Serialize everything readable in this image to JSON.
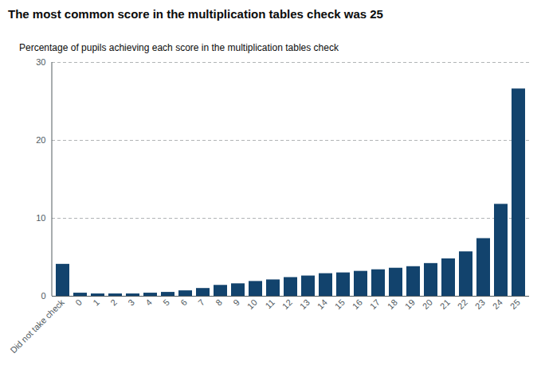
{
  "chart_data": {
    "type": "bar",
    "title": "The most common score in the multiplication tables check was 25",
    "subtitle": "Percentage of pupils achieving each score in the multiplication tables check",
    "categories": [
      "Did not take check",
      "0",
      "1",
      "2",
      "3",
      "4",
      "5",
      "6",
      "7",
      "8",
      "9",
      "10",
      "11",
      "12",
      "13",
      "14",
      "15",
      "16",
      "17",
      "18",
      "19",
      "20",
      "21",
      "22",
      "23",
      "24",
      "25"
    ],
    "values": [
      4.1,
      0.4,
      0.3,
      0.3,
      0.3,
      0.4,
      0.5,
      0.7,
      1.0,
      1.4,
      1.6,
      1.9,
      2.1,
      2.4,
      2.6,
      2.9,
      3.0,
      3.2,
      3.4,
      3.6,
      3.8,
      4.2,
      4.8,
      5.7,
      7.4,
      11.8,
      26.6
    ],
    "color": "#12436d",
    "ylim": [
      0,
      30
    ],
    "yticks": [
      0,
      10,
      20,
      30
    ],
    "grid": true
  }
}
